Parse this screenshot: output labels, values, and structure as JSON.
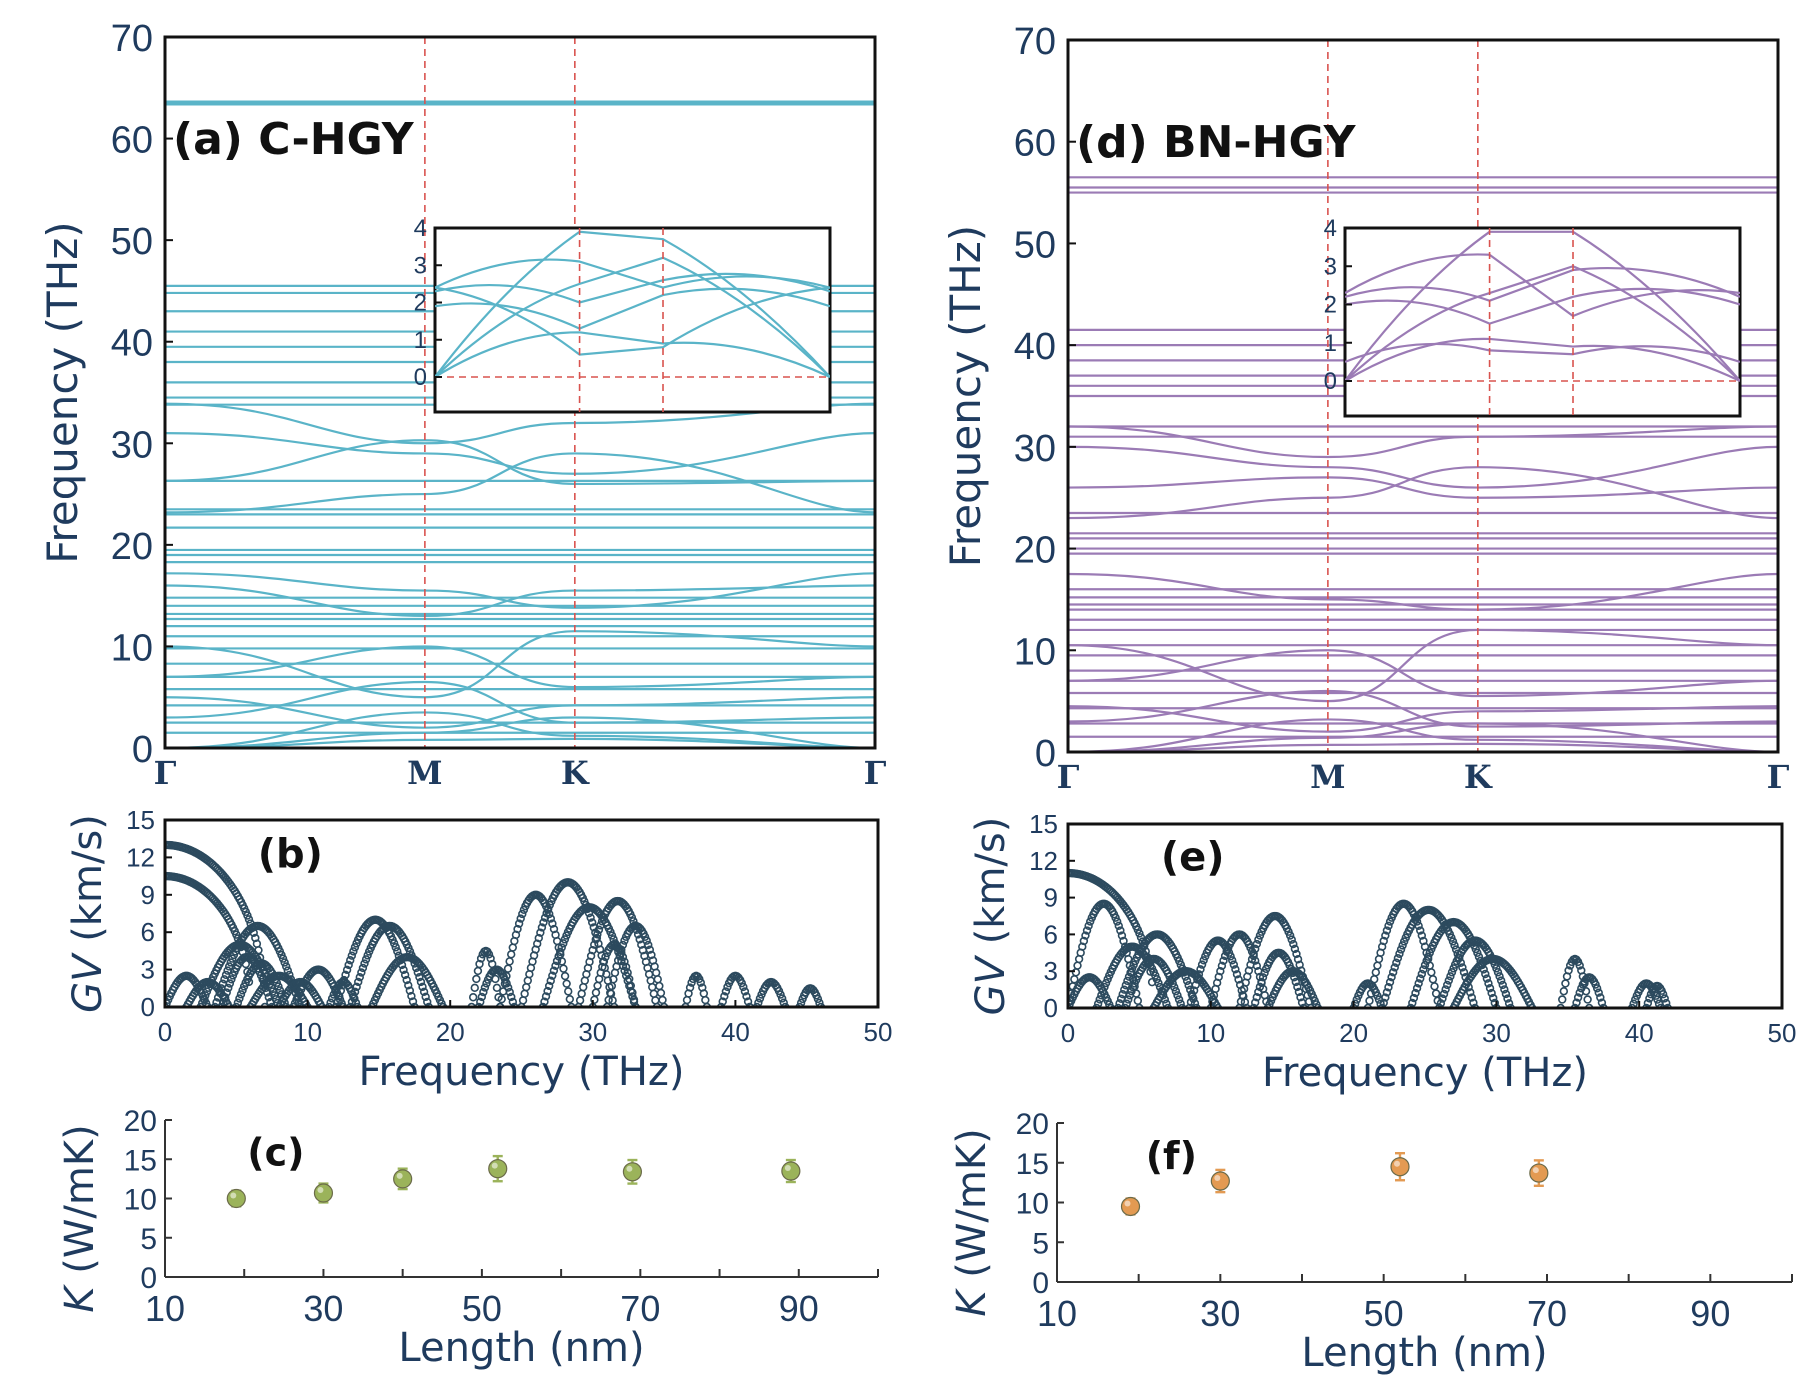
{
  "figure": {
    "colors": {
      "c_hgy": "#5ab4c8",
      "bn_hgy": "#9b7bb5",
      "gv_marker": "#2c4a5e",
      "k_c": "#9bb35a",
      "k_bn": "#e39a52",
      "text": "#1f3b5e",
      "guide": "#d9534f"
    }
  },
  "chart_data": [
    {
      "id": "a",
      "type": "line",
      "title": "(a) C-HGY",
      "ylabel": "Frequency (THz)",
      "ylim": [
        0,
        70
      ],
      "yticks": [
        "0",
        "10",
        "20",
        "30",
        "40",
        "50",
        "60",
        "70"
      ],
      "kpath_labels": [
        "Γ",
        "M",
        "K",
        "Γ"
      ],
      "kpath_positions": [
        0,
        1,
        1.577,
        2.732
      ],
      "flat_bands_THz": [
        63.5,
        45.5,
        44.8,
        43.0,
        41.0,
        39.5,
        38.0,
        36.0,
        34.5,
        33.8,
        26.3,
        23.5,
        23.0,
        21.7,
        19.5,
        19.0,
        18.3,
        14.8,
        14.0,
        13.2,
        12.7,
        12.0,
        11.0,
        9.8,
        8.3,
        7.0,
        5.8,
        4.2,
        2.5,
        1.5
      ],
      "dispersive_bands_THz": [
        {
          "gamma": 33.9,
          "m": 30.0,
          "k": 32.0
        },
        {
          "gamma": 31.0,
          "m": 29.0,
          "k": 27.0
        },
        {
          "gamma": 26.3,
          "m": 30.3,
          "k": 26.0
        },
        {
          "gamma": 23.2,
          "m": 25.0,
          "k": 29.0
        },
        {
          "gamma": 17.2,
          "m": 15.5,
          "k": 13.8
        },
        {
          "gamma": 16.0,
          "m": 13.0,
          "k": 15.5
        },
        {
          "gamma": 10.0,
          "m": 5.0,
          "k": 11.5
        },
        {
          "gamma": 7.0,
          "m": 10.0,
          "k": 6.0
        },
        {
          "gamma": 5.0,
          "m": 2.0,
          "k": 4.2
        },
        {
          "gamma": 3.0,
          "m": 6.5,
          "k": 2.5
        },
        {
          "gamma": 0.0,
          "m": 3.5,
          "k": 1.2
        },
        {
          "gamma": 0.0,
          "m": 1.5,
          "k": 3.0
        },
        {
          "gamma": 0.0,
          "m": 0.8,
          "k": 0.9
        }
      ],
      "inset": {
        "ylim": [
          0,
          4
        ],
        "yticks": [
          "0",
          "1",
          "2",
          "3",
          "4"
        ],
        "bands": [
          {
            "gamma": 0.0,
            "m": 3.9,
            "k": 3.7
          },
          {
            "gamma": 0.0,
            "m": 2.5,
            "k": 3.2
          },
          {
            "gamma": 0.0,
            "m": 1.2,
            "k": 0.9
          },
          {
            "gamma": 1.9,
            "m": 1.3,
            "k": 2.2
          },
          {
            "gamma": 2.3,
            "m": 2.0,
            "k": 2.6
          },
          {
            "gamma": 2.4,
            "m": 3.1,
            "k": 2.4
          },
          {
            "gamma": 2.4,
            "m": 0.6,
            "k": 0.8
          }
        ]
      }
    },
    {
      "id": "d",
      "type": "line",
      "title": "(d) BN-HGY",
      "ylabel": "Frequency (THz)",
      "ylim": [
        0,
        70
      ],
      "yticks": [
        "0",
        "10",
        "20",
        "30",
        "40",
        "50",
        "60",
        "70"
      ],
      "kpath_labels": [
        "Γ",
        "M",
        "K",
        "Γ"
      ],
      "kpath_positions": [
        0,
        1,
        1.577,
        2.732
      ],
      "flat_bands_THz": [
        56.5,
        55.5,
        55.0,
        41.5,
        40.0,
        38.5,
        37.0,
        36.0,
        35.0,
        32.0,
        31.0,
        23.5,
        21.5,
        21.0,
        20.0,
        19.5,
        16.0,
        15.2,
        14.5,
        14.0,
        13.0,
        12.0,
        10.5,
        9.5,
        8.0,
        7.0,
        5.8,
        4.3,
        2.8,
        1.5
      ],
      "dispersive_bands_THz": [
        {
          "gamma": 32.0,
          "m": 29.0,
          "k": 31.0
        },
        {
          "gamma": 30.0,
          "m": 28.0,
          "k": 26.0
        },
        {
          "gamma": 26.0,
          "m": 27.0,
          "k": 25.0
        },
        {
          "gamma": 23.0,
          "m": 25.0,
          "k": 28.0
        },
        {
          "gamma": 17.5,
          "m": 15.0,
          "k": 14.0
        },
        {
          "gamma": 10.5,
          "m": 5.0,
          "k": 12.0
        },
        {
          "gamma": 7.0,
          "m": 10.0,
          "k": 5.5
        },
        {
          "gamma": 4.5,
          "m": 2.0,
          "k": 4.0
        },
        {
          "gamma": 3.0,
          "m": 6.0,
          "k": 2.5
        },
        {
          "gamma": 0.0,
          "m": 3.2,
          "k": 1.2
        },
        {
          "gamma": 0.0,
          "m": 1.4,
          "k": 2.8
        },
        {
          "gamma": 0.0,
          "m": 0.7,
          "k": 0.8
        }
      ],
      "inset": {
        "ylim": [
          0,
          4
        ],
        "yticks": [
          "0",
          "1",
          "2",
          "3",
          "4"
        ],
        "bands": [
          {
            "gamma": 0.0,
            "m": 3.9,
            "k": 3.9
          },
          {
            "gamma": 0.0,
            "m": 2.3,
            "k": 3.0
          },
          {
            "gamma": 0.0,
            "m": 1.1,
            "k": 0.9
          },
          {
            "gamma": 2.0,
            "m": 1.5,
            "k": 2.2
          },
          {
            "gamma": 2.2,
            "m": 2.1,
            "k": 2.9
          },
          {
            "gamma": 2.3,
            "m": 3.3,
            "k": 1.7
          },
          {
            "gamma": 0.5,
            "m": 0.8,
            "k": 0.7
          }
        ]
      }
    },
    {
      "id": "b",
      "type": "scatter",
      "title": "(b)",
      "xlabel": "Frequency (THz)",
      "ylabel": "GV (km/s)",
      "ylabel_italic": "GV",
      "ylabel_rest": " (km/s)",
      "xlim": [
        0,
        50
      ],
      "ylim": [
        0,
        15
      ],
      "xticks": [
        "0",
        "10",
        "20",
        "30",
        "40",
        "50"
      ],
      "yticks": [
        "0",
        "3",
        "6",
        "9",
        "12",
        "15"
      ],
      "arches": [
        [
          0.0,
          7.0,
          13.0
        ],
        [
          0.0,
          6.0,
          10.5
        ],
        [
          2.5,
          8.0,
          5.0
        ],
        [
          3.5,
          9.5,
          6.5
        ],
        [
          4.0,
          7.5,
          4.0
        ],
        [
          5.0,
          8.5,
          3.5
        ],
        [
          0.0,
          3.0,
          2.5
        ],
        [
          1.5,
          4.5,
          2.0
        ],
        [
          6.0,
          10.0,
          2.5
        ],
        [
          8.0,
          11.0,
          2.0
        ],
        [
          9.0,
          12.5,
          3.0
        ],
        [
          11.5,
          13.5,
          2.0
        ],
        [
          12.0,
          17.5,
          7.0
        ],
        [
          13.0,
          18.5,
          6.5
        ],
        [
          14.5,
          19.5,
          4.0
        ],
        [
          21.5,
          23.5,
          4.5
        ],
        [
          22.0,
          24.5,
          3.0
        ],
        [
          23.5,
          28.5,
          9.0
        ],
        [
          25.0,
          31.5,
          10.0
        ],
        [
          26.5,
          33.0,
          8.0
        ],
        [
          29.0,
          34.5,
          8.5
        ],
        [
          30.0,
          33.0,
          5.0
        ],
        [
          31.0,
          35.0,
          6.5
        ],
        [
          36.5,
          38.0,
          2.5
        ],
        [
          39.0,
          41.0,
          2.5
        ],
        [
          41.5,
          43.5,
          2.0
        ],
        [
          44.5,
          46.0,
          1.5
        ]
      ]
    },
    {
      "id": "e",
      "type": "scatter",
      "title": "(e)",
      "xlabel": "Frequency (THz)",
      "ylabel": "GV (km/s)",
      "ylabel_italic": "GV",
      "ylabel_rest": " (km/s)",
      "xlim": [
        0,
        50
      ],
      "ylim": [
        0,
        15
      ],
      "xticks": [
        "0",
        "10",
        "20",
        "30",
        "40",
        "50"
      ],
      "yticks": [
        "0",
        "3",
        "6",
        "9",
        "12",
        "15"
      ],
      "arches": [
        [
          0.0,
          6.0,
          11.0
        ],
        [
          0.0,
          5.0,
          8.5
        ],
        [
          2.0,
          7.0,
          5.0
        ],
        [
          3.5,
          9.0,
          6.0
        ],
        [
          4.0,
          8.0,
          4.0
        ],
        [
          0.0,
          3.0,
          2.5
        ],
        [
          6.0,
          10.5,
          3.0
        ],
        [
          8.5,
          12.5,
          5.5
        ],
        [
          10.0,
          14.0,
          6.0
        ],
        [
          12.0,
          17.0,
          7.5
        ],
        [
          13.0,
          16.5,
          4.5
        ],
        [
          14.0,
          17.5,
          3.0
        ],
        [
          20.0,
          22.0,
          2.0
        ],
        [
          21.0,
          26.0,
          8.5
        ],
        [
          22.0,
          28.5,
          8.0
        ],
        [
          24.0,
          30.0,
          7.0
        ],
        [
          26.0,
          31.0,
          5.5
        ],
        [
          27.0,
          32.5,
          4.0
        ],
        [
          34.5,
          36.5,
          4.0
        ],
        [
          35.5,
          37.5,
          2.5
        ],
        [
          39.5,
          41.5,
          2.0
        ],
        [
          40.5,
          42.0,
          1.8
        ]
      ]
    },
    {
      "id": "c",
      "type": "scatter",
      "title": "(c)",
      "xlabel": "Length (nm)",
      "ylabel": "K (W/mK)",
      "ylabel_italic": "K",
      "ylabel_rest": " (W/mK)",
      "xlim": [
        10,
        100
      ],
      "ylim": [
        0,
        20
      ],
      "xticks": [
        "10",
        "30",
        "50",
        "70",
        "90"
      ],
      "yticks": [
        "0",
        "5",
        "10",
        "15",
        "20"
      ],
      "x": [
        19,
        30,
        40,
        52,
        69,
        89
      ],
      "y": [
        10.0,
        10.7,
        12.5,
        13.8,
        13.4,
        13.5
      ],
      "err": [
        1.0,
        1.2,
        1.3,
        1.6,
        1.5,
        1.4
      ]
    },
    {
      "id": "f",
      "type": "scatter",
      "title": "(f)",
      "xlabel": "Length (nm)",
      "ylabel": "K (W/mK)",
      "ylabel_italic": "K",
      "ylabel_rest": " (W/mK)",
      "xlim": [
        10,
        100
      ],
      "ylim": [
        0,
        20
      ],
      "xticks": [
        "10",
        "30",
        "50",
        "70",
        "90"
      ],
      "yticks": [
        "0",
        "5",
        "10",
        "15",
        "20"
      ],
      "x": [
        19,
        30,
        52,
        69
      ],
      "y": [
        9.5,
        12.7,
        14.5,
        13.7
      ],
      "err": [
        1.0,
        1.4,
        1.7,
        1.6
      ]
    }
  ]
}
